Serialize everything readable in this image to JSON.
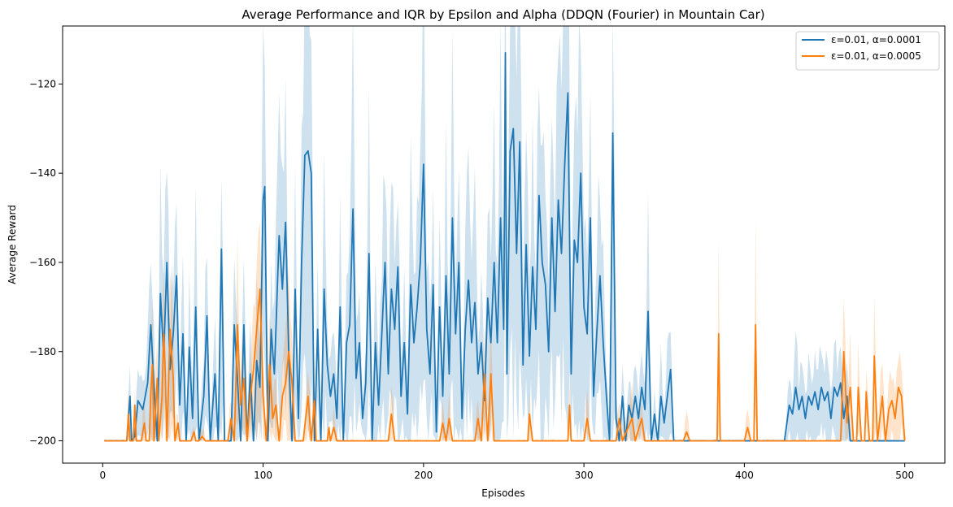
{
  "chart_data": {
    "type": "line",
    "title": "Average Performance and IQR by Epsilon and Alpha (DDQN (Fourier) in Mountain Car)",
    "xlabel": "Episodes",
    "ylabel": "Average Reward",
    "xlim": [
      -25,
      525
    ],
    "ylim": [
      -205,
      -107
    ],
    "xticks": [
      0,
      100,
      200,
      300,
      400,
      500
    ],
    "yticks": [
      -200,
      -180,
      -160,
      -140,
      -120
    ],
    "grid": false,
    "legend_position": "top-right",
    "series": [
      {
        "name": "ε=0.01, α=0.0001",
        "color": "#1f77b4",
        "keypoints": [
          [
            1,
            -200
          ],
          [
            15,
            -200
          ],
          [
            17,
            -190
          ],
          [
            18,
            -200
          ],
          [
            20,
            -199
          ],
          [
            22,
            -191
          ],
          [
            25,
            -193
          ],
          [
            28,
            -187
          ],
          [
            30,
            -174
          ],
          [
            32,
            -188
          ],
          [
            34,
            -200
          ],
          [
            36,
            -167
          ],
          [
            38,
            -181
          ],
          [
            40,
            -160
          ],
          [
            42,
            -184
          ],
          [
            44,
            -176
          ],
          [
            46,
            -163
          ],
          [
            48,
            -192
          ],
          [
            50,
            -176
          ],
          [
            52,
            -200
          ],
          [
            54,
            -179
          ],
          [
            56,
            -195
          ],
          [
            58,
            -170
          ],
          [
            60,
            -200
          ],
          [
            63,
            -190
          ],
          [
            65,
            -172
          ],
          [
            67,
            -200
          ],
          [
            70,
            -185
          ],
          [
            72,
            -200
          ],
          [
            74,
            -157
          ],
          [
            76,
            -200
          ],
          [
            80,
            -200
          ],
          [
            82,
            -174
          ],
          [
            84,
            -186
          ],
          [
            86,
            -200
          ],
          [
            88,
            -174
          ],
          [
            90,
            -200
          ],
          [
            92,
            -185
          ],
          [
            94,
            -200
          ],
          [
            96,
            -182
          ],
          [
            98,
            -188
          ],
          [
            100,
            -146
          ],
          [
            101,
            -143
          ],
          [
            103,
            -200
          ],
          [
            105,
            -175
          ],
          [
            107,
            -185
          ],
          [
            110,
            -154
          ],
          [
            112,
            -166
          ],
          [
            114,
            -151
          ],
          [
            116,
            -181
          ],
          [
            118,
            -200
          ],
          [
            120,
            -166
          ],
          [
            122,
            -195
          ],
          [
            124,
            -160
          ],
          [
            126,
            -136
          ],
          [
            128,
            -135
          ],
          [
            130,
            -140
          ],
          [
            132,
            -200
          ],
          [
            134,
            -175
          ],
          [
            136,
            -200
          ],
          [
            138,
            -166
          ],
          [
            140,
            -183
          ],
          [
            142,
            -190
          ],
          [
            144,
            -185
          ],
          [
            146,
            -195
          ],
          [
            148,
            -170
          ],
          [
            150,
            -200
          ],
          [
            152,
            -178
          ],
          [
            154,
            -174
          ],
          [
            156,
            -148
          ],
          [
            158,
            -186
          ],
          [
            160,
            -178
          ],
          [
            162,
            -195
          ],
          [
            164,
            -187
          ],
          [
            166,
            -158
          ],
          [
            168,
            -200
          ],
          [
            170,
            -178
          ],
          [
            172,
            -192
          ],
          [
            174,
            -176
          ],
          [
            176,
            -160
          ],
          [
            178,
            -185
          ],
          [
            180,
            -166
          ],
          [
            182,
            -175
          ],
          [
            184,
            -161
          ],
          [
            186,
            -190
          ],
          [
            188,
            -178
          ],
          [
            190,
            -194
          ],
          [
            192,
            -165
          ],
          [
            194,
            -178
          ],
          [
            196,
            -170
          ],
          [
            198,
            -160
          ],
          [
            200,
            -138
          ],
          [
            202,
            -175
          ],
          [
            204,
            -185
          ],
          [
            206,
            -165
          ],
          [
            208,
            -198
          ],
          [
            210,
            -170
          ],
          [
            212,
            -190
          ],
          [
            214,
            -163
          ],
          [
            216,
            -185
          ],
          [
            218,
            -150
          ],
          [
            220,
            -176
          ],
          [
            222,
            -160
          ],
          [
            224,
            -195
          ],
          [
            226,
            -175
          ],
          [
            228,
            -164
          ],
          [
            230,
            -178
          ],
          [
            232,
            -169
          ],
          [
            234,
            -185
          ],
          [
            236,
            -178
          ],
          [
            238,
            -191
          ],
          [
            240,
            -168
          ],
          [
            242,
            -178
          ],
          [
            244,
            -160
          ],
          [
            246,
            -178
          ],
          [
            248,
            -150
          ],
          [
            250,
            -175
          ],
          [
            251,
            -113
          ],
          [
            252,
            -185
          ],
          [
            254,
            -135
          ],
          [
            256,
            -130
          ],
          [
            258,
            -158
          ],
          [
            260,
            -133
          ],
          [
            262,
            -183
          ],
          [
            264,
            -156
          ],
          [
            266,
            -181
          ],
          [
            268,
            -161
          ],
          [
            270,
            -175
          ],
          [
            272,
            -145
          ],
          [
            274,
            -160
          ],
          [
            276,
            -165
          ],
          [
            278,
            -180
          ],
          [
            280,
            -150
          ],
          [
            282,
            -171
          ],
          [
            284,
            -146
          ],
          [
            286,
            -158
          ],
          [
            288,
            -138
          ],
          [
            290,
            -122
          ],
          [
            292,
            -185
          ],
          [
            294,
            -155
          ],
          [
            296,
            -160
          ],
          [
            298,
            -140
          ],
          [
            300,
            -170
          ],
          [
            302,
            -176
          ],
          [
            304,
            -150
          ],
          [
            306,
            -190
          ],
          [
            308,
            -176
          ],
          [
            310,
            -163
          ],
          [
            312,
            -178
          ],
          [
            314,
            -190
          ],
          [
            316,
            -200
          ],
          [
            318,
            -131
          ],
          [
            320,
            -195
          ],
          [
            322,
            -200
          ],
          [
            324,
            -190
          ],
          [
            326,
            -200
          ],
          [
            328,
            -192
          ],
          [
            330,
            -195
          ],
          [
            332,
            -190
          ],
          [
            334,
            -195
          ],
          [
            336,
            -188
          ],
          [
            338,
            -193
          ],
          [
            340,
            -171
          ],
          [
            342,
            -200
          ],
          [
            344,
            -194
          ],
          [
            346,
            -200
          ],
          [
            348,
            -190
          ],
          [
            350,
            -196
          ],
          [
            352,
            -190
          ],
          [
            354,
            -184
          ],
          [
            356,
            -200
          ],
          [
            425,
            -200
          ],
          [
            428,
            -192
          ],
          [
            430,
            -194
          ],
          [
            432,
            -188
          ],
          [
            434,
            -193
          ],
          [
            436,
            -190
          ],
          [
            438,
            -195
          ],
          [
            440,
            -190
          ],
          [
            442,
            -192
          ],
          [
            444,
            -189
          ],
          [
            446,
            -193
          ],
          [
            448,
            -188
          ],
          [
            450,
            -191
          ],
          [
            452,
            -189
          ],
          [
            454,
            -195
          ],
          [
            456,
            -188
          ],
          [
            458,
            -190
          ],
          [
            460,
            -187
          ],
          [
            462,
            -195
          ],
          [
            464,
            -190
          ],
          [
            466,
            -200
          ],
          [
            500,
            -200
          ]
        ]
      },
      {
        "name": "ε=0.01, α=0.0005",
        "color": "#ff7f0e",
        "keypoints": [
          [
            1,
            -200
          ],
          [
            15,
            -200
          ],
          [
            16,
            -194
          ],
          [
            17,
            -200
          ],
          [
            19,
            -200
          ],
          [
            20,
            -192
          ],
          [
            21,
            -200
          ],
          [
            24,
            -200
          ],
          [
            26,
            -196
          ],
          [
            27,
            -200
          ],
          [
            29,
            -200
          ],
          [
            30,
            -189
          ],
          [
            31,
            -183
          ],
          [
            32,
            -200
          ],
          [
            34,
            -186
          ],
          [
            35,
            -200
          ],
          [
            37,
            -190
          ],
          [
            38,
            -176
          ],
          [
            39,
            -185
          ],
          [
            40,
            -200
          ],
          [
            42,
            -175
          ],
          [
            44,
            -186
          ],
          [
            45,
            -200
          ],
          [
            47,
            -196
          ],
          [
            48,
            -200
          ],
          [
            55,
            -200
          ],
          [
            57,
            -198
          ],
          [
            58,
            -200
          ],
          [
            60,
            -200
          ],
          [
            62,
            -199
          ],
          [
            64,
            -200
          ],
          [
            78,
            -200
          ],
          [
            80,
            -195
          ],
          [
            82,
            -200
          ],
          [
            84,
            -174
          ],
          [
            86,
            -192
          ],
          [
            88,
            -186
          ],
          [
            90,
            -200
          ],
          [
            92,
            -190
          ],
          [
            94,
            -184
          ],
          [
            96,
            -175
          ],
          [
            98,
            -166
          ],
          [
            100,
            -190
          ],
          [
            102,
            -200
          ],
          [
            104,
            -183
          ],
          [
            106,
            -195
          ],
          [
            108,
            -192
          ],
          [
            110,
            -200
          ],
          [
            112,
            -190
          ],
          [
            114,
            -187
          ],
          [
            116,
            -180
          ],
          [
            118,
            -187
          ],
          [
            120,
            -200
          ],
          [
            125,
            -200
          ],
          [
            128,
            -190
          ],
          [
            130,
            -200
          ],
          [
            132,
            -191
          ],
          [
            133,
            -200
          ],
          [
            140,
            -200
          ],
          [
            141,
            -197
          ],
          [
            142,
            -200
          ],
          [
            144,
            -197
          ],
          [
            146,
            -200
          ],
          [
            178,
            -200
          ],
          [
            180,
            -194
          ],
          [
            182,
            -200
          ],
          [
            210,
            -200
          ],
          [
            212,
            -196
          ],
          [
            214,
            -200
          ],
          [
            216,
            -195
          ],
          [
            218,
            -200
          ],
          [
            232,
            -200
          ],
          [
            234,
            -195
          ],
          [
            236,
            -200
          ],
          [
            238,
            -185
          ],
          [
            240,
            -200
          ],
          [
            242,
            -185
          ],
          [
            244,
            -200
          ],
          [
            265,
            -200
          ],
          [
            266,
            -194
          ],
          [
            268,
            -200
          ],
          [
            290,
            -200
          ],
          [
            291,
            -192
          ],
          [
            292,
            -200
          ],
          [
            300,
            -200
          ],
          [
            302,
            -195
          ],
          [
            304,
            -200
          ],
          [
            320,
            -200
          ],
          [
            322,
            -195
          ],
          [
            324,
            -200
          ],
          [
            330,
            -195
          ],
          [
            332,
            -200
          ],
          [
            336,
            -195
          ],
          [
            338,
            -200
          ],
          [
            350,
            -200
          ],
          [
            362,
            -200
          ],
          [
            364,
            -198
          ],
          [
            366,
            -200
          ],
          [
            383,
            -200
          ],
          [
            384,
            -176
          ],
          [
            385,
            -200
          ],
          [
            400,
            -200
          ],
          [
            402,
            -197
          ],
          [
            404,
            -200
          ],
          [
            406,
            -200
          ],
          [
            407,
            -174
          ],
          [
            408,
            -200
          ],
          [
            460,
            -200
          ],
          [
            462,
            -180
          ],
          [
            464,
            -196
          ],
          [
            466,
            -188
          ],
          [
            468,
            -200
          ],
          [
            470,
            -200
          ],
          [
            471,
            -188
          ],
          [
            473,
            -200
          ],
          [
            475,
            -200
          ],
          [
            476,
            -189
          ],
          [
            478,
            -200
          ],
          [
            480,
            -200
          ],
          [
            481,
            -181
          ],
          [
            483,
            -200
          ],
          [
            486,
            -190
          ],
          [
            488,
            -200
          ],
          [
            490,
            -193
          ],
          [
            492,
            -191
          ],
          [
            494,
            -195
          ],
          [
            496,
            -188
          ],
          [
            498,
            -190
          ],
          [
            500,
            -200
          ]
        ]
      }
    ]
  }
}
